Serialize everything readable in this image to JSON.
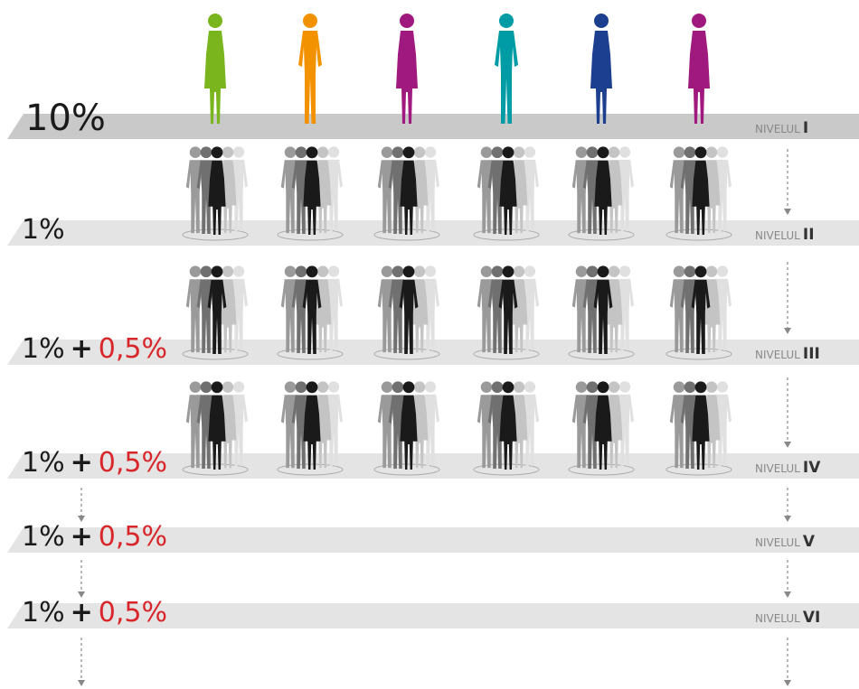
{
  "levels": [
    {
      "percent": "10%",
      "label": "NIVELUL",
      "numeral": "I"
    },
    {
      "percent": "1%",
      "label": "NIVELUL",
      "numeral": "II"
    },
    {
      "percent": "1%",
      "plus": "+",
      "bonus": "0,5%",
      "label": "NIVELUL",
      "numeral": "III"
    },
    {
      "percent": "1%",
      "plus": "+",
      "bonus": "0,5%",
      "label": "NIVELUL",
      "numeral": "IV"
    },
    {
      "percent": "1%",
      "plus": "+",
      "bonus": "0,5%",
      "label": "NIVELUL",
      "numeral": "V"
    },
    {
      "percent": "1%",
      "plus": "+",
      "bonus": "0,5%",
      "label": "NIVELUL",
      "numeral": "VI"
    }
  ]
}
